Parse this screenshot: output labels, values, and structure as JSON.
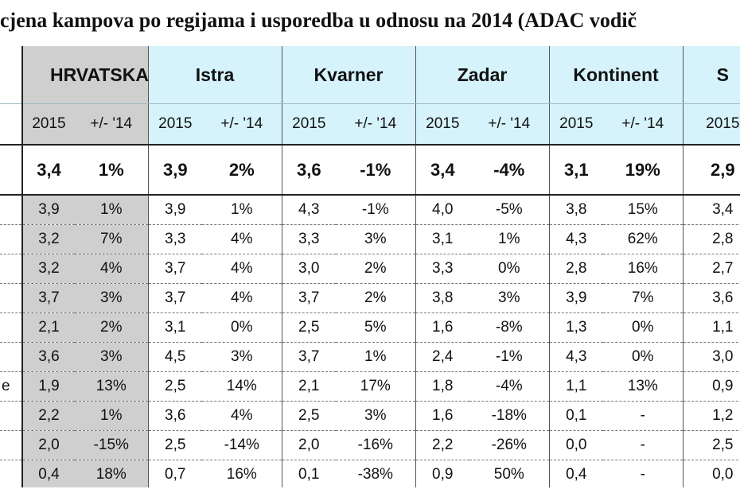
{
  "title": "cjena kampova po regijama i usporedba u odnosu na 2014 (ADAC vodič",
  "regions": [
    "HRVATSKA",
    "Istra",
    "Kvarner",
    "Zadar",
    "Kontinent",
    "S"
  ],
  "sub_headers": [
    "2015",
    "+/- '14",
    "2015",
    "+/- '14",
    "2015",
    "+/- '14",
    "2015",
    "+/- '14",
    "2015",
    "+/- '14",
    "2015"
  ],
  "total_row": [
    "3,4",
    "1%",
    "3,9",
    "2%",
    "3,6",
    "-1%",
    "3,4",
    "-4%",
    "3,1",
    "19%",
    "2,9"
  ],
  "rows": [
    {
      "label": "",
      "cells": [
        "3,9",
        "1%",
        "3,9",
        "1%",
        "4,3",
        "-1%",
        "4,0",
        "-5%",
        "3,8",
        "15%",
        "3,4"
      ]
    },
    {
      "label": "",
      "cells": [
        "3,2",
        "7%",
        "3,3",
        "4%",
        "3,3",
        "3%",
        "3,1",
        "1%",
        "4,3",
        "62%",
        "2,8"
      ]
    },
    {
      "label": "",
      "cells": [
        "3,2",
        "4%",
        "3,7",
        "4%",
        "3,0",
        "2%",
        "3,3",
        "0%",
        "2,8",
        "16%",
        "2,7"
      ]
    },
    {
      "label": "",
      "cells": [
        "3,7",
        "3%",
        "3,7",
        "4%",
        "3,7",
        "2%",
        "3,8",
        "3%",
        "3,9",
        "7%",
        "3,6"
      ]
    },
    {
      "label": "",
      "cells": [
        "2,1",
        "2%",
        "3,1",
        "0%",
        "2,5",
        "5%",
        "1,6",
        "-8%",
        "1,3",
        "0%",
        "1,1"
      ]
    },
    {
      "label": "",
      "cells": [
        "3,6",
        "3%",
        "4,5",
        "3%",
        "3,7",
        "1%",
        "2,4",
        "-1%",
        "4,3",
        "0%",
        "3,0"
      ]
    },
    {
      "label": "e",
      "cells": [
        "1,9",
        "13%",
        "2,5",
        "14%",
        "2,1",
        "17%",
        "1,8",
        "-4%",
        "1,1",
        "13%",
        "0,9"
      ]
    },
    {
      "label": "",
      "cells": [
        "2,2",
        "1%",
        "3,6",
        "4%",
        "2,5",
        "3%",
        "1,6",
        "-18%",
        "0,1",
        "-",
        "1,2"
      ]
    },
    {
      "label": "",
      "cells": [
        "2,0",
        "-15%",
        "2,5",
        "-14%",
        "2,0",
        "-16%",
        "2,2",
        "-26%",
        "0,0",
        "-",
        "2,5"
      ]
    },
    {
      "label": "",
      "cells": [
        "0,4",
        "18%",
        "0,7",
        "16%",
        "0,1",
        "-38%",
        "0,9",
        "50%",
        "0,4",
        "-",
        "0,0"
      ]
    }
  ],
  "colors": {
    "header_bg": "#d6f3fb",
    "highlight_bg": "#cfcfcf"
  }
}
